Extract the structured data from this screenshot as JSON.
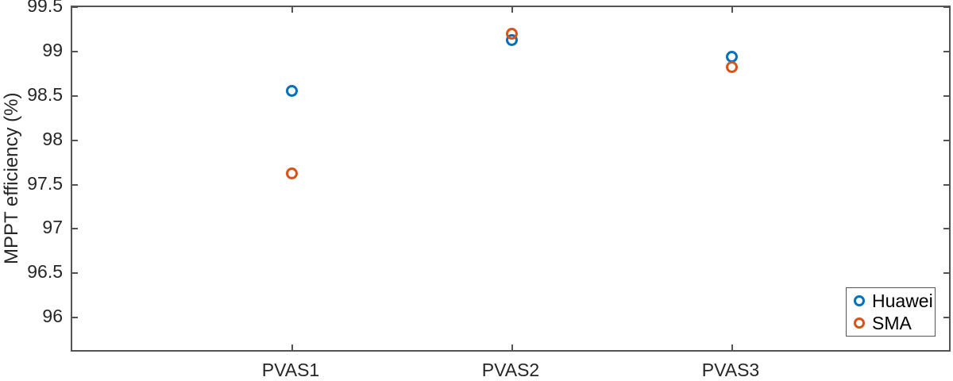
{
  "figure": {
    "kind": "matlab-style scatter figure",
    "background": "#ffffff",
    "axis_color": "#545454",
    "text_color": "#262626"
  },
  "chart_data": {
    "type": "scatter",
    "title": "",
    "xlabel": "",
    "ylabel": "MPPT efficiency (%)",
    "categories": [
      "PVAS1",
      "PVAS2",
      "PVAS3"
    ],
    "series": [
      {
        "name": "Huawei",
        "color": "#0072BD",
        "marker": "open-circle",
        "values": [
          98.55,
          99.12,
          98.94
        ]
      },
      {
        "name": "SMA",
        "color": "#D95319",
        "marker": "open-circle",
        "values": [
          97.62,
          99.2,
          98.82
        ]
      }
    ],
    "ylim": [
      95.6,
      99.5
    ],
    "yticks": [
      96,
      96.5,
      97,
      97.5,
      98,
      98.5,
      99,
      99.5
    ],
    "ytick_labels": [
      "96",
      "96.5",
      "97",
      "97.5",
      "98",
      "98.5",
      "99",
      "99.5"
    ],
    "grid": false,
    "box": true,
    "legend": {
      "position": "bottom-right-inside",
      "entries": [
        "Huawei",
        "SMA"
      ]
    }
  }
}
